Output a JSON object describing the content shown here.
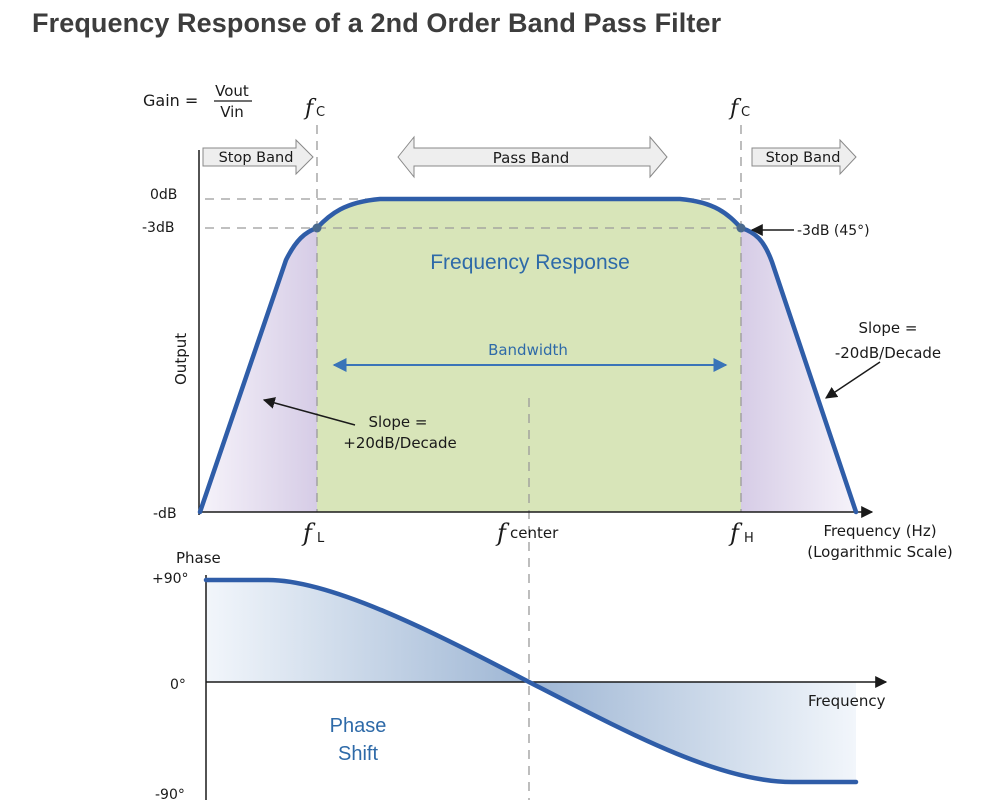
{
  "page": {
    "title": "Frequency Response of a 2nd Order Band Pass Filter"
  },
  "gain_formula": {
    "lhs": "Gain =",
    "numerator": "Vout",
    "denominator": "Vin"
  },
  "cutoff_symbol": {
    "f": "f",
    "sub": "C"
  },
  "bands": {
    "stop_left": "Stop Band",
    "pass": "Pass Band",
    "stop_right": "Stop Band"
  },
  "gain_axis": {
    "label": "Output",
    "ticks": [
      "0dB",
      "-3dB",
      "-dB"
    ]
  },
  "annotations": {
    "minus3db_45": "-3dB (45°)",
    "freq_response": "Frequency Response",
    "bandwidth": "Bandwidth",
    "slope_pos_line1": "Slope =",
    "slope_pos_line2": "+20dB/Decade",
    "slope_neg_line1": "Slope =",
    "slope_neg_line2": "-20dB/Decade"
  },
  "freq_markers": {
    "f": "f",
    "low_sub": "L",
    "center_sub": "center",
    "high_sub": "H"
  },
  "freq_axis": {
    "line1": "Frequency (Hz)",
    "line2": "(Logarithmic Scale)"
  },
  "phase_axis": {
    "title": "Phase",
    "ticks": [
      "+90°",
      "0°",
      "-90°"
    ],
    "x_label": "Frequency",
    "shift_line1": "Phase",
    "shift_line2": "Shift"
  },
  "colors": {
    "curve": "#2f5da8",
    "passband_fill": "#d8e5b9",
    "rolloff_fill": "#ddd5ea",
    "text_blue": "#2e6aa8",
    "axis": "#1a1a1a"
  }
}
